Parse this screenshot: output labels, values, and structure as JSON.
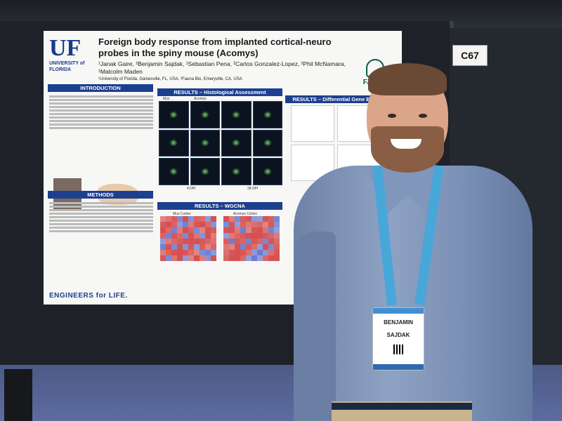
{
  "booth": {
    "number": "C67"
  },
  "poster": {
    "logo_text": "UF",
    "logo_sub_1": "UNIVERSITY of",
    "logo_sub_2": "FLORIDA",
    "title": "Foreign body response from implanted cortical-neuro probes in the spiny mouse (Acomys)",
    "authors": "¹Janak Gaire, ²Benjamin Sajdak, ¹Sebastian Pena, ²Carlos Gonzalez-Lopez, ²Phil McNamara, ¹Malcolm Maden",
    "affiliations": "¹University of Florida, Gainesville, FL, USA, ²Fauna Bio, Emeryville, CA, USA",
    "partner_logo": "FAUNA",
    "sections": {
      "introduction": "INTRODUCTION",
      "methods": "METHODS",
      "histology": "RESULTS – Histological Assessment",
      "wgcna": "RESULTS – WGCNA",
      "differential": "RESULTS – Differential Gene Expression"
    },
    "panel_labels": {
      "mus": "Mus",
      "acomys": "Acomys",
      "dpi_4": "4 DPI",
      "dpi_28": "28 DPI",
      "mus_cortex": "Mus Cortex",
      "acomys_cortex": "Acomys Cortex"
    },
    "footer_brand": "ENGINEERS for LIFE."
  },
  "badge": {
    "first_name": "BENJAMIN",
    "last_name": "SAJDAK"
  },
  "colors": {
    "uf_blue": "#1d3f8f",
    "lanyard": "#49a6d8",
    "fauna_green": "#0b5b48"
  }
}
